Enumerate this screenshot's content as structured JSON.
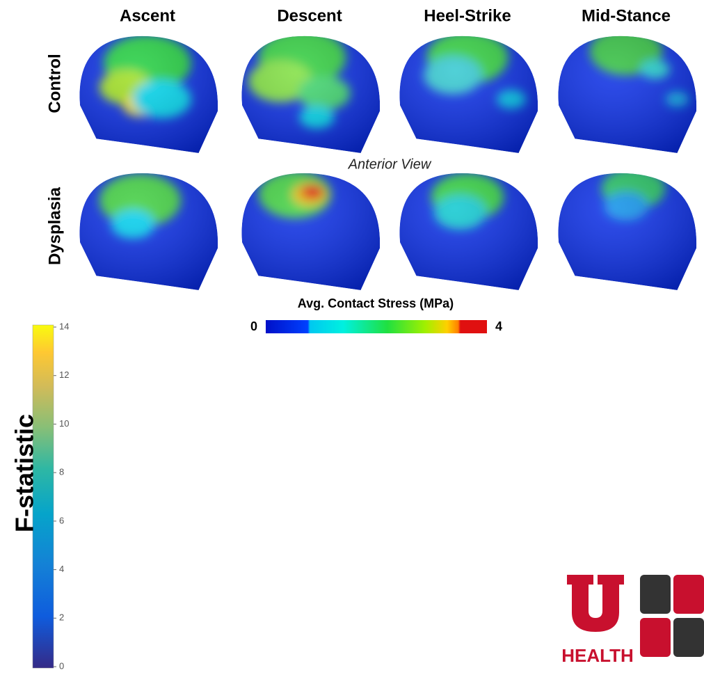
{
  "columns": [
    "Ascent",
    "Descent",
    "Heel-Strike",
    "Mid-Stance"
  ],
  "rows": [
    "Control",
    "Dysplasia"
  ],
  "view_label": "Anterior View",
  "stress_bar": {
    "title": "Avg. Contact Stress (MPa)",
    "min": 0,
    "max": 4
  },
  "f_bar": {
    "label": "F-statistic",
    "ticks": [
      0,
      2,
      4,
      6,
      8,
      10,
      12,
      14
    ]
  },
  "logo": {
    "text": "HEALTH"
  }
}
